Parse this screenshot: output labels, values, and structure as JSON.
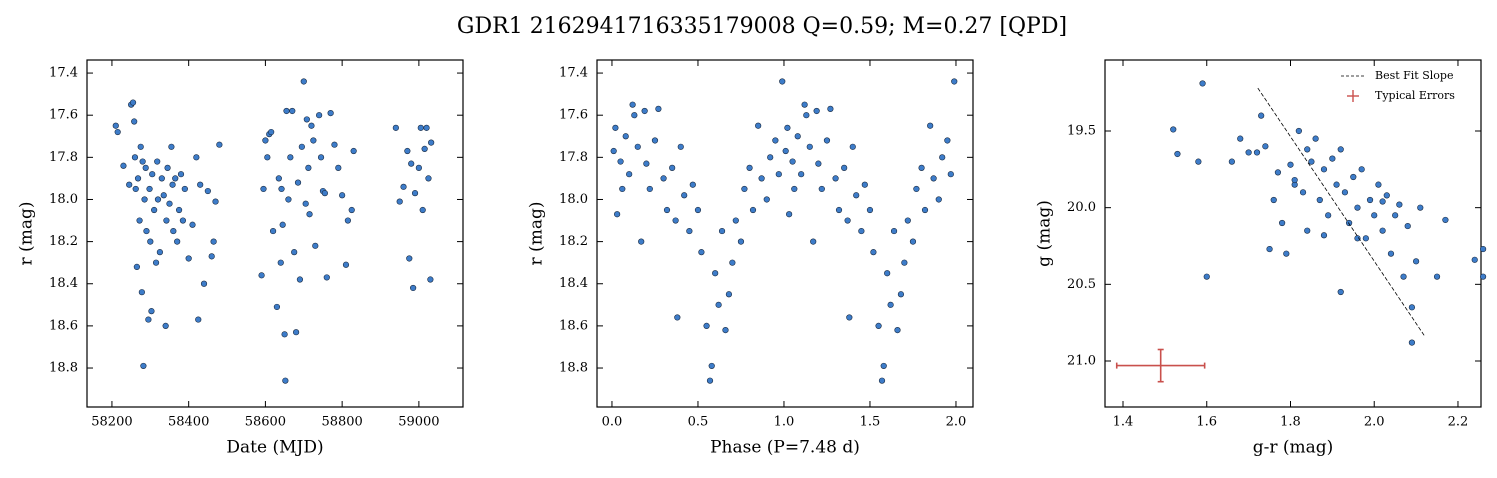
{
  "title": "GDR1 2162941716335179008  Q=0.59; M=0.27 [QPD]",
  "chart_data": [
    {
      "type": "scatter",
      "x_label": "Date (MJD)",
      "y_label": "r (mag)",
      "color": "#3d7cc9",
      "xlim": [
        58135,
        59115
      ],
      "ylim": [
        18.985,
        17.338
      ],
      "xticks": [
        58200,
        58400,
        58600,
        58800,
        59000
      ],
      "yticks": [
        17.4,
        17.6,
        17.8,
        {
          "value": 18,
          "label": "18.0"
        },
        18.2,
        18.4,
        18.6,
        18.8
      ],
      "x": [
        58210,
        58215,
        58230,
        58245,
        58250,
        58255,
        58258,
        58260,
        58262,
        58265,
        58268,
        58272,
        58275,
        58278,
        58280,
        58282,
        58285,
        58288,
        58290,
        58295,
        58298,
        58300,
        58303,
        58305,
        58310,
        58315,
        58318,
        58320,
        58325,
        58330,
        58335,
        58340,
        58342,
        58345,
        58350,
        58355,
        58358,
        58360,
        58365,
        58370,
        58375,
        58380,
        58385,
        58390,
        58400,
        58410,
        58420,
        58425,
        58430,
        58440,
        58450,
        58460,
        58465,
        58470,
        58480,
        58590,
        58595,
        58600,
        58605,
        58610,
        58615,
        58620,
        58630,
        58635,
        58640,
        58642,
        58645,
        58650,
        58652,
        58655,
        58660,
        58665,
        58670,
        58675,
        58680,
        58685,
        58690,
        58695,
        58700,
        58705,
        58708,
        58712,
        58715,
        58720,
        58725,
        58730,
        58740,
        58745,
        58750,
        58755,
        58760,
        58770,
        58780,
        58790,
        58800,
        58810,
        58815,
        58825,
        58830,
        58940,
        58950,
        58960,
        58970,
        58975,
        58980,
        58985,
        58990,
        59000,
        59005,
        59010,
        59015,
        59020,
        59025,
        59030,
        59032
      ],
      "values": [
        17.65,
        17.68,
        17.84,
        17.93,
        17.55,
        17.54,
        17.63,
        17.8,
        17.95,
        18.32,
        17.9,
        18.1,
        17.75,
        18.44,
        17.82,
        18.79,
        18.0,
        17.85,
        18.15,
        18.57,
        17.95,
        18.2,
        18.53,
        17.88,
        18.05,
        18.3,
        17.82,
        18.0,
        18.25,
        17.9,
        17.98,
        18.6,
        18.1,
        17.85,
        18.02,
        17.75,
        17.93,
        18.15,
        17.9,
        18.2,
        18.05,
        17.88,
        18.1,
        17.95,
        18.28,
        18.12,
        17.8,
        18.57,
        17.93,
        18.4,
        17.96,
        18.27,
        18.2,
        18.01,
        17.74,
        18.36,
        17.95,
        17.72,
        17.8,
        17.69,
        17.68,
        18.15,
        18.51,
        17.9,
        18.3,
        17.95,
        18.12,
        18.64,
        18.86,
        17.58,
        18.0,
        17.8,
        17.58,
        18.25,
        18.63,
        17.92,
        18.38,
        17.75,
        17.44,
        18.02,
        17.62,
        17.85,
        18.07,
        17.65,
        17.72,
        18.22,
        17.6,
        17.8,
        17.96,
        17.97,
        18.37,
        17.59,
        17.74,
        17.85,
        17.98,
        18.31,
        18.1,
        18.05,
        17.77,
        17.66,
        18.01,
        17.94,
        17.77,
        18.28,
        17.83,
        18.42,
        17.97,
        17.85,
        17.66,
        18.05,
        17.76,
        17.66,
        17.9,
        18.38,
        17.73
      ]
    },
    {
      "type": "scatter",
      "x_label": "Phase (P=7.48 d)",
      "y_label": "r (mag)",
      "color": "#3d7cc9",
      "xlim": [
        -0.087,
        2.099
      ],
      "ylim": [
        18.985,
        17.338
      ],
      "xticks": [
        {
          "value": 0,
          "label": "0.0"
        },
        0.5,
        {
          "value": 1,
          "label": "1.0"
        },
        1.5,
        {
          "value": 2,
          "label": "2.0"
        }
      ],
      "yticks": [
        17.4,
        17.6,
        17.8,
        {
          "value": 18,
          "label": "18.0"
        },
        18.2,
        18.4,
        18.6,
        18.8
      ],
      "x": [
        0.01,
        0.02,
        0.03,
        0.05,
        0.06,
        0.08,
        0.1,
        0.12,
        0.13,
        0.15,
        0.17,
        0.19,
        0.2,
        0.22,
        0.25,
        0.27,
        0.3,
        0.32,
        0.35,
        0.37,
        0.38,
        0.4,
        0.42,
        0.45,
        0.47,
        0.5,
        0.52,
        0.55,
        0.57,
        0.58,
        0.6,
        0.62,
        0.64,
        0.66,
        0.68,
        0.7,
        0.72,
        0.75,
        0.77,
        0.8,
        0.82,
        0.85,
        0.87,
        0.9,
        0.92,
        0.95,
        0.97,
        0.99,
        1.01,
        1.02,
        1.03,
        1.05,
        1.06,
        1.08,
        1.1,
        1.12,
        1.13,
        1.15,
        1.17,
        1.19,
        1.2,
        1.22,
        1.25,
        1.27,
        1.3,
        1.32,
        1.35,
        1.37,
        1.38,
        1.4,
        1.42,
        1.45,
        1.47,
        1.5,
        1.52,
        1.55,
        1.57,
        1.58,
        1.6,
        1.62,
        1.64,
        1.66,
        1.68,
        1.7,
        1.72,
        1.75,
        1.77,
        1.8,
        1.82,
        1.85,
        1.87,
        1.9,
        1.92,
        1.95,
        1.97,
        1.99
      ],
      "values": [
        17.77,
        17.66,
        18.07,
        17.82,
        17.95,
        17.7,
        17.88,
        17.55,
        17.6,
        17.75,
        18.2,
        17.58,
        17.83,
        17.95,
        17.72,
        17.57,
        17.9,
        18.05,
        17.85,
        18.1,
        18.56,
        17.75,
        17.98,
        18.15,
        17.93,
        18.05,
        18.25,
        18.6,
        18.86,
        18.79,
        18.35,
        18.5,
        18.15,
        18.62,
        18.45,
        18.3,
        18.1,
        18.2,
        17.95,
        17.85,
        18.05,
        17.65,
        17.9,
        18.0,
        17.8,
        17.72,
        17.88,
        17.44,
        17.77,
        17.66,
        18.07,
        17.82,
        17.95,
        17.7,
        17.88,
        17.55,
        17.6,
        17.75,
        18.2,
        17.58,
        17.83,
        17.95,
        17.72,
        17.57,
        17.9,
        18.05,
        17.85,
        18.1,
        18.56,
        17.75,
        17.98,
        18.15,
        17.93,
        18.05,
        18.25,
        18.6,
        18.86,
        18.79,
        18.35,
        18.5,
        18.15,
        18.62,
        18.45,
        18.3,
        18.1,
        18.2,
        17.95,
        17.85,
        18.05,
        17.65,
        17.9,
        18.0,
        17.8,
        17.72,
        17.88,
        17.44
      ]
    },
    {
      "type": "scatter",
      "x_label": "g-r (mag)",
      "y_label": "g (mag)",
      "color": "#3d7cc9",
      "xlim": [
        1.357,
        2.255
      ],
      "ylim": [
        21.3,
        19.037
      ],
      "xticks": [
        1.4,
        1.6,
        1.8,
        {
          "value": 2,
          "label": "2.0"
        },
        2.2
      ],
      "yticks": [
        19.5,
        {
          "value": 20,
          "label": "20.0"
        },
        20.5,
        {
          "value": 21,
          "label": "21.0"
        }
      ],
      "x": [
        1.52,
        1.53,
        1.58,
        1.59,
        1.6,
        1.66,
        1.68,
        1.7,
        1.72,
        1.74,
        1.75,
        1.76,
        1.77,
        1.78,
        1.79,
        1.8,
        1.81,
        1.82,
        1.83,
        1.84,
        1.85,
        1.86,
        1.87,
        1.88,
        1.89,
        1.9,
        1.91,
        1.92,
        1.93,
        1.94,
        1.95,
        1.96,
        1.97,
        1.98,
        1.99,
        2.0,
        2.01,
        2.02,
        2.03,
        2.04,
        2.05,
        2.06,
        2.07,
        2.08,
        2.09,
        2.09,
        2.1,
        2.11,
        2.17,
        2.15,
        2.24,
        2.26,
        2.26,
        1.73,
        1.84,
        1.92,
        1.88,
        1.96,
        2.02,
        1.81
      ],
      "values": [
        19.49,
        19.65,
        19.7,
        19.19,
        20.45,
        19.7,
        19.55,
        19.64,
        19.64,
        19.6,
        20.27,
        19.95,
        19.77,
        20.1,
        20.3,
        19.72,
        19.85,
        19.5,
        19.9,
        20.15,
        19.7,
        19.55,
        19.95,
        19.75,
        20.05,
        19.68,
        19.85,
        20.55,
        19.9,
        20.1,
        19.8,
        20.0,
        19.75,
        20.2,
        19.95,
        20.05,
        19.85,
        20.15,
        19.92,
        20.3,
        20.05,
        19.98,
        20.45,
        20.12,
        20.65,
        20.88,
        20.35,
        20.0,
        20.08,
        20.45,
        20.34,
        20.27,
        20.45,
        19.4,
        19.62,
        19.62,
        20.18,
        20.2,
        19.96,
        19.82
      ],
      "fit_line": {
        "name": "Best Fit Slope",
        "color": "#000000",
        "x": [
          1.722,
          2.121
        ],
        "y": [
          19.22,
          20.84
        ]
      },
      "error_bar": {
        "name": "Typical Errors",
        "color": "#c9504c",
        "x": 1.49,
        "y": 21.03,
        "xerr": 0.105,
        "yerr": 0.105
      },
      "legend": "upper right"
    }
  ]
}
